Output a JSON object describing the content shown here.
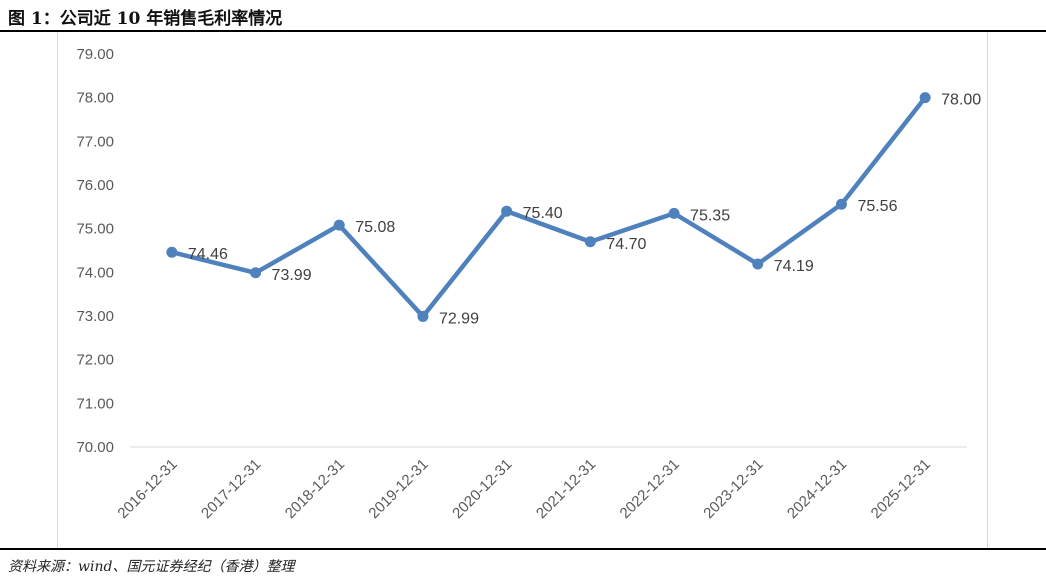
{
  "header": {
    "title": "图 1：公司近 10 年销售毛利率情况"
  },
  "footer": {
    "source": "资料来源：wind、国元证券经纪（香港）整理"
  },
  "chart_data": {
    "type": "line",
    "title": "",
    "xlabel": "",
    "ylabel": "",
    "categories": [
      "2016-12-31",
      "2017-12-31",
      "2018-12-31",
      "2019-12-31",
      "2020-12-31",
      "2021-12-31",
      "2022-12-31",
      "2023-12-31",
      "2024-12-31",
      "2025-12-31"
    ],
    "series": [
      {
        "values": [
          74.46,
          73.99,
          75.08,
          72.99,
          75.4,
          74.7,
          75.35,
          74.19,
          75.56,
          78.0
        ],
        "labels": [
          "74.46",
          "73.99",
          "75.08",
          "72.99",
          "75.40",
          "74.70",
          "75.35",
          "74.19",
          "75.56",
          "78.00"
        ],
        "color": "#4f81bd"
      }
    ],
    "ylim": [
      70,
      79
    ],
    "yticks": [
      "70.00",
      "71.00",
      "72.00",
      "73.00",
      "74.00",
      "75.00",
      "76.00",
      "77.00",
      "78.00",
      "79.00"
    ],
    "grid": "horizontal baseline only",
    "legend": "none"
  }
}
